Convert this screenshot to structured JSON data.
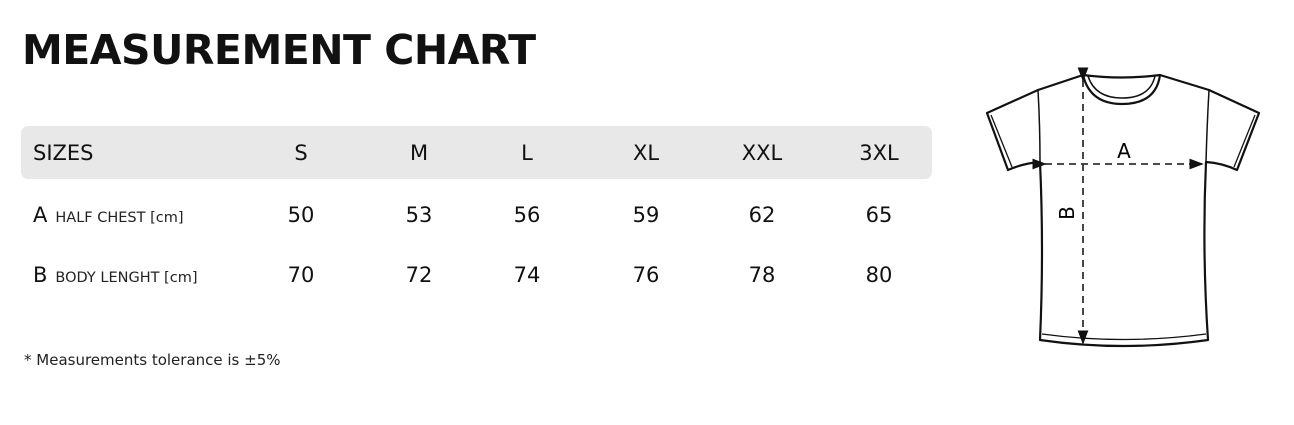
{
  "title": "MEASUREMENT CHART",
  "table": {
    "header_label": "SIZES",
    "sizes": [
      "S",
      "M",
      "L",
      "XL",
      "XXL",
      "3XL"
    ],
    "rows": [
      {
        "key": "A",
        "label": "HALF CHEST [cm]",
        "values": [
          "50",
          "53",
          "56",
          "59",
          "62",
          "65"
        ]
      },
      {
        "key": "B",
        "label": "BODY LENGHT [cm]",
        "values": [
          "70",
          "72",
          "74",
          "76",
          "78",
          "80"
        ]
      }
    ]
  },
  "note": "* Measurements tolerance is ±5%",
  "diagram": {
    "label_a": "A",
    "label_b": "B"
  },
  "colors": {
    "header_bg": "#e8e8e8",
    "text": "#111111"
  }
}
